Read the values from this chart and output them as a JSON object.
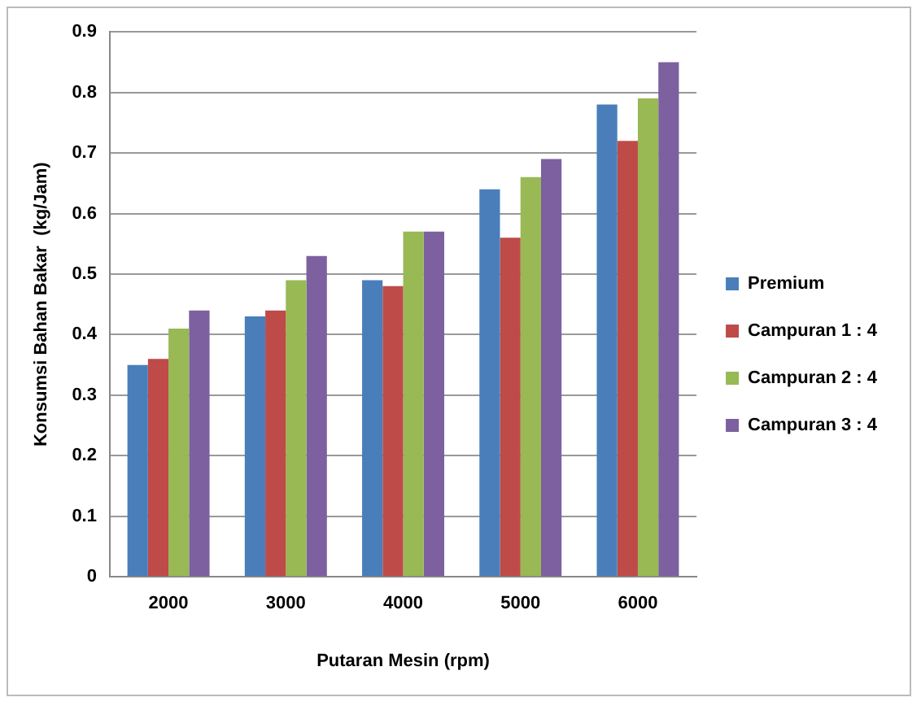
{
  "chart_data": {
    "type": "bar",
    "xlabel": "Putaran Mesin (rpm)",
    "ylabel": "Konsumsi Bahan Bakar  (kg/Jam)",
    "categories": [
      "2000",
      "3000",
      "4000",
      "5000",
      "6000"
    ],
    "series": [
      {
        "name": "Premium",
        "color": "#4a7ebb",
        "values": [
          0.35,
          0.43,
          0.49,
          0.64,
          0.78
        ]
      },
      {
        "name": "Campuran 1 : 4",
        "color": "#be4b48",
        "values": [
          0.36,
          0.44,
          0.48,
          0.56,
          0.72
        ]
      },
      {
        "name": "Campuran 2 : 4",
        "color": "#98b954",
        "values": [
          0.41,
          0.49,
          0.57,
          0.66,
          0.79
        ]
      },
      {
        "name": "Campuran 3 : 4",
        "color": "#7d60a0",
        "values": [
          0.44,
          0.53,
          0.57,
          0.69,
          0.85
        ]
      }
    ],
    "ylim": [
      0,
      0.9
    ],
    "yticks": [
      0,
      0.1,
      0.2,
      0.3,
      0.4,
      0.5,
      0.6,
      0.7,
      0.8,
      0.9
    ],
    "grid": "y",
    "legend": "right"
  }
}
